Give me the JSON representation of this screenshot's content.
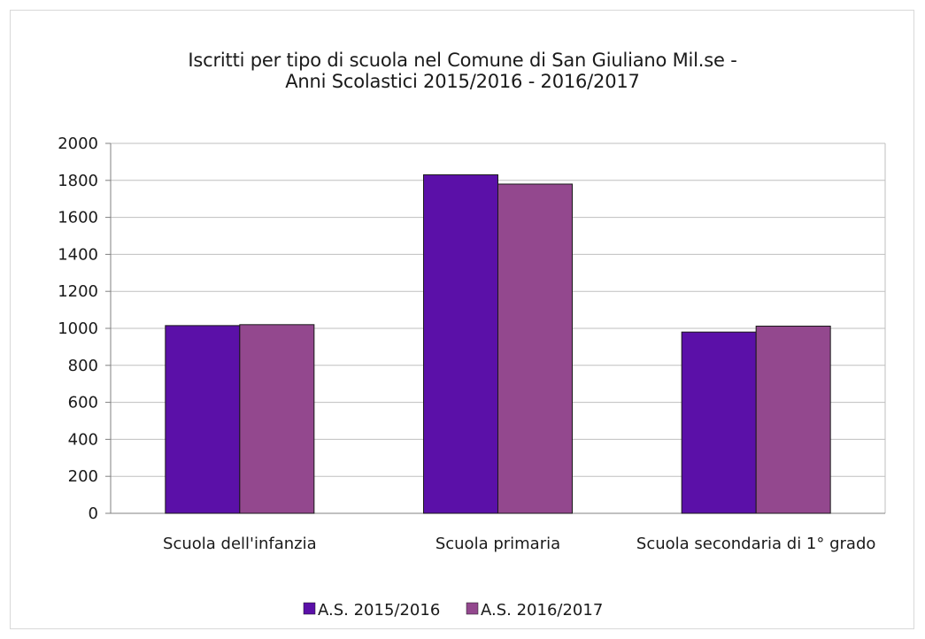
{
  "chart_data": {
    "type": "bar",
    "title": "Iscritti per tipo di scuola nel Comune di San Giuliano Mil.se -",
    "subtitle": "Anni Scolastici 2015/2016 - 2016/2017",
    "xlabel": "",
    "ylabel": "",
    "ylim": [
      0,
      2000
    ],
    "yticks": [
      0,
      200,
      400,
      600,
      800,
      1000,
      1200,
      1400,
      1600,
      1800,
      2000
    ],
    "grid": true,
    "legend_position": "bottom",
    "categories": [
      "Scuola dell'infanzia",
      "Scuola primaria",
      "Scuola secondaria di 1° grado"
    ],
    "series": [
      {
        "name": "A.S. 2015/2016",
        "values": [
          1015,
          1830,
          980
        ],
        "color": "#5b10a8"
      },
      {
        "name": "A.S. 2016/2017",
        "values": [
          1020,
          1780,
          1012
        ],
        "color": "#93488e"
      }
    ]
  }
}
